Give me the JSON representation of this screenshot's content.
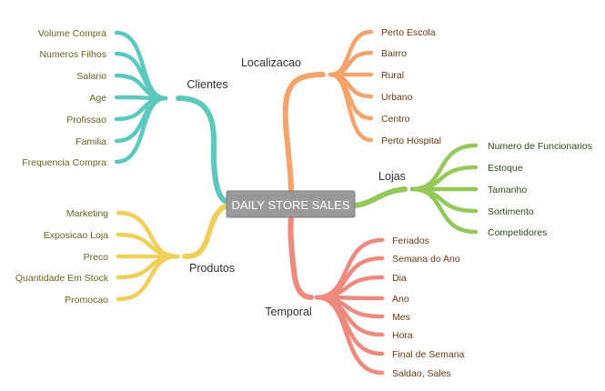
{
  "center": {
    "label": "DAILY STORE SALES"
  },
  "colors": {
    "clientes": "#5cc9bf",
    "produtos": "#f0cf5a",
    "localizacao": "#f4a46a",
    "lojas": "#94c95a",
    "temporal": "#ee8a7d",
    "center_bg": "#9a9a9a",
    "center_border": "#7f7f7f",
    "text_left": "#6b6320",
    "text_right": "#6b3a14",
    "text_lojas": "#2e4a1a"
  },
  "branches": {
    "clientes": {
      "label": "Clientes",
      "items": [
        "Volume Compra",
        "Numeros Filhos",
        "Salario",
        "Age",
        "Profissao",
        "Familia",
        "Frequencia Compra"
      ]
    },
    "produtos": {
      "label": "Produtos",
      "items": [
        "Marketing",
        "Exposicao Loja",
        "Preco",
        "Quantidade Em Stock",
        "Promocao"
      ]
    },
    "localizacao": {
      "label": "Localizacao",
      "items": [
        "Perto Escola",
        "Bairro",
        "Rural",
        "Urbano",
        "Centro",
        "Perto Hospital"
      ]
    },
    "lojas": {
      "label": "Lojas",
      "items": [
        "Numero de Funcionarios",
        "Estoque",
        "Tamanho",
        "Sortimento",
        "Competidores"
      ]
    },
    "temporal": {
      "label": "Temporal",
      "items": [
        "Feriados",
        "Semana do Ano",
        "Dia",
        "Ano",
        "Mes",
        "Hora",
        "Final de Semana",
        "Saldao, Sales"
      ]
    }
  }
}
